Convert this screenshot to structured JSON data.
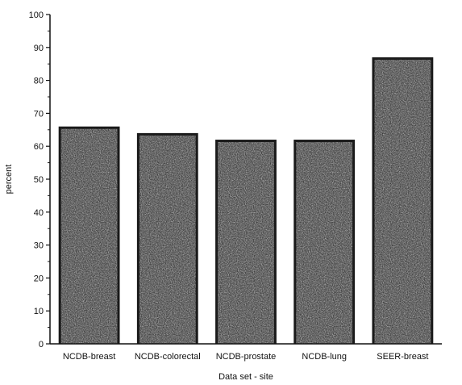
{
  "chart_data": {
    "type": "bar",
    "title": "",
    "xlabel": "Data set - site",
    "ylabel": "percent",
    "categories": [
      "NCDB-breast",
      "NCDB-colorectal",
      "NCDB-prostate",
      "NCDB-lung",
      "SEER-breast"
    ],
    "values": [
      66,
      64,
      62,
      62,
      87
    ],
    "ylim": [
      0,
      100
    ],
    "yticks": [
      "0",
      "10",
      "20",
      "30",
      "40",
      "50",
      "60",
      "70",
      "80",
      "90",
      "100"
    ],
    "grid": false,
    "legend": "none"
  },
  "colors": {
    "bar_fill": "#8a8a8a",
    "bar_edge": "#1a1a1a",
    "axis": "#111111"
  }
}
